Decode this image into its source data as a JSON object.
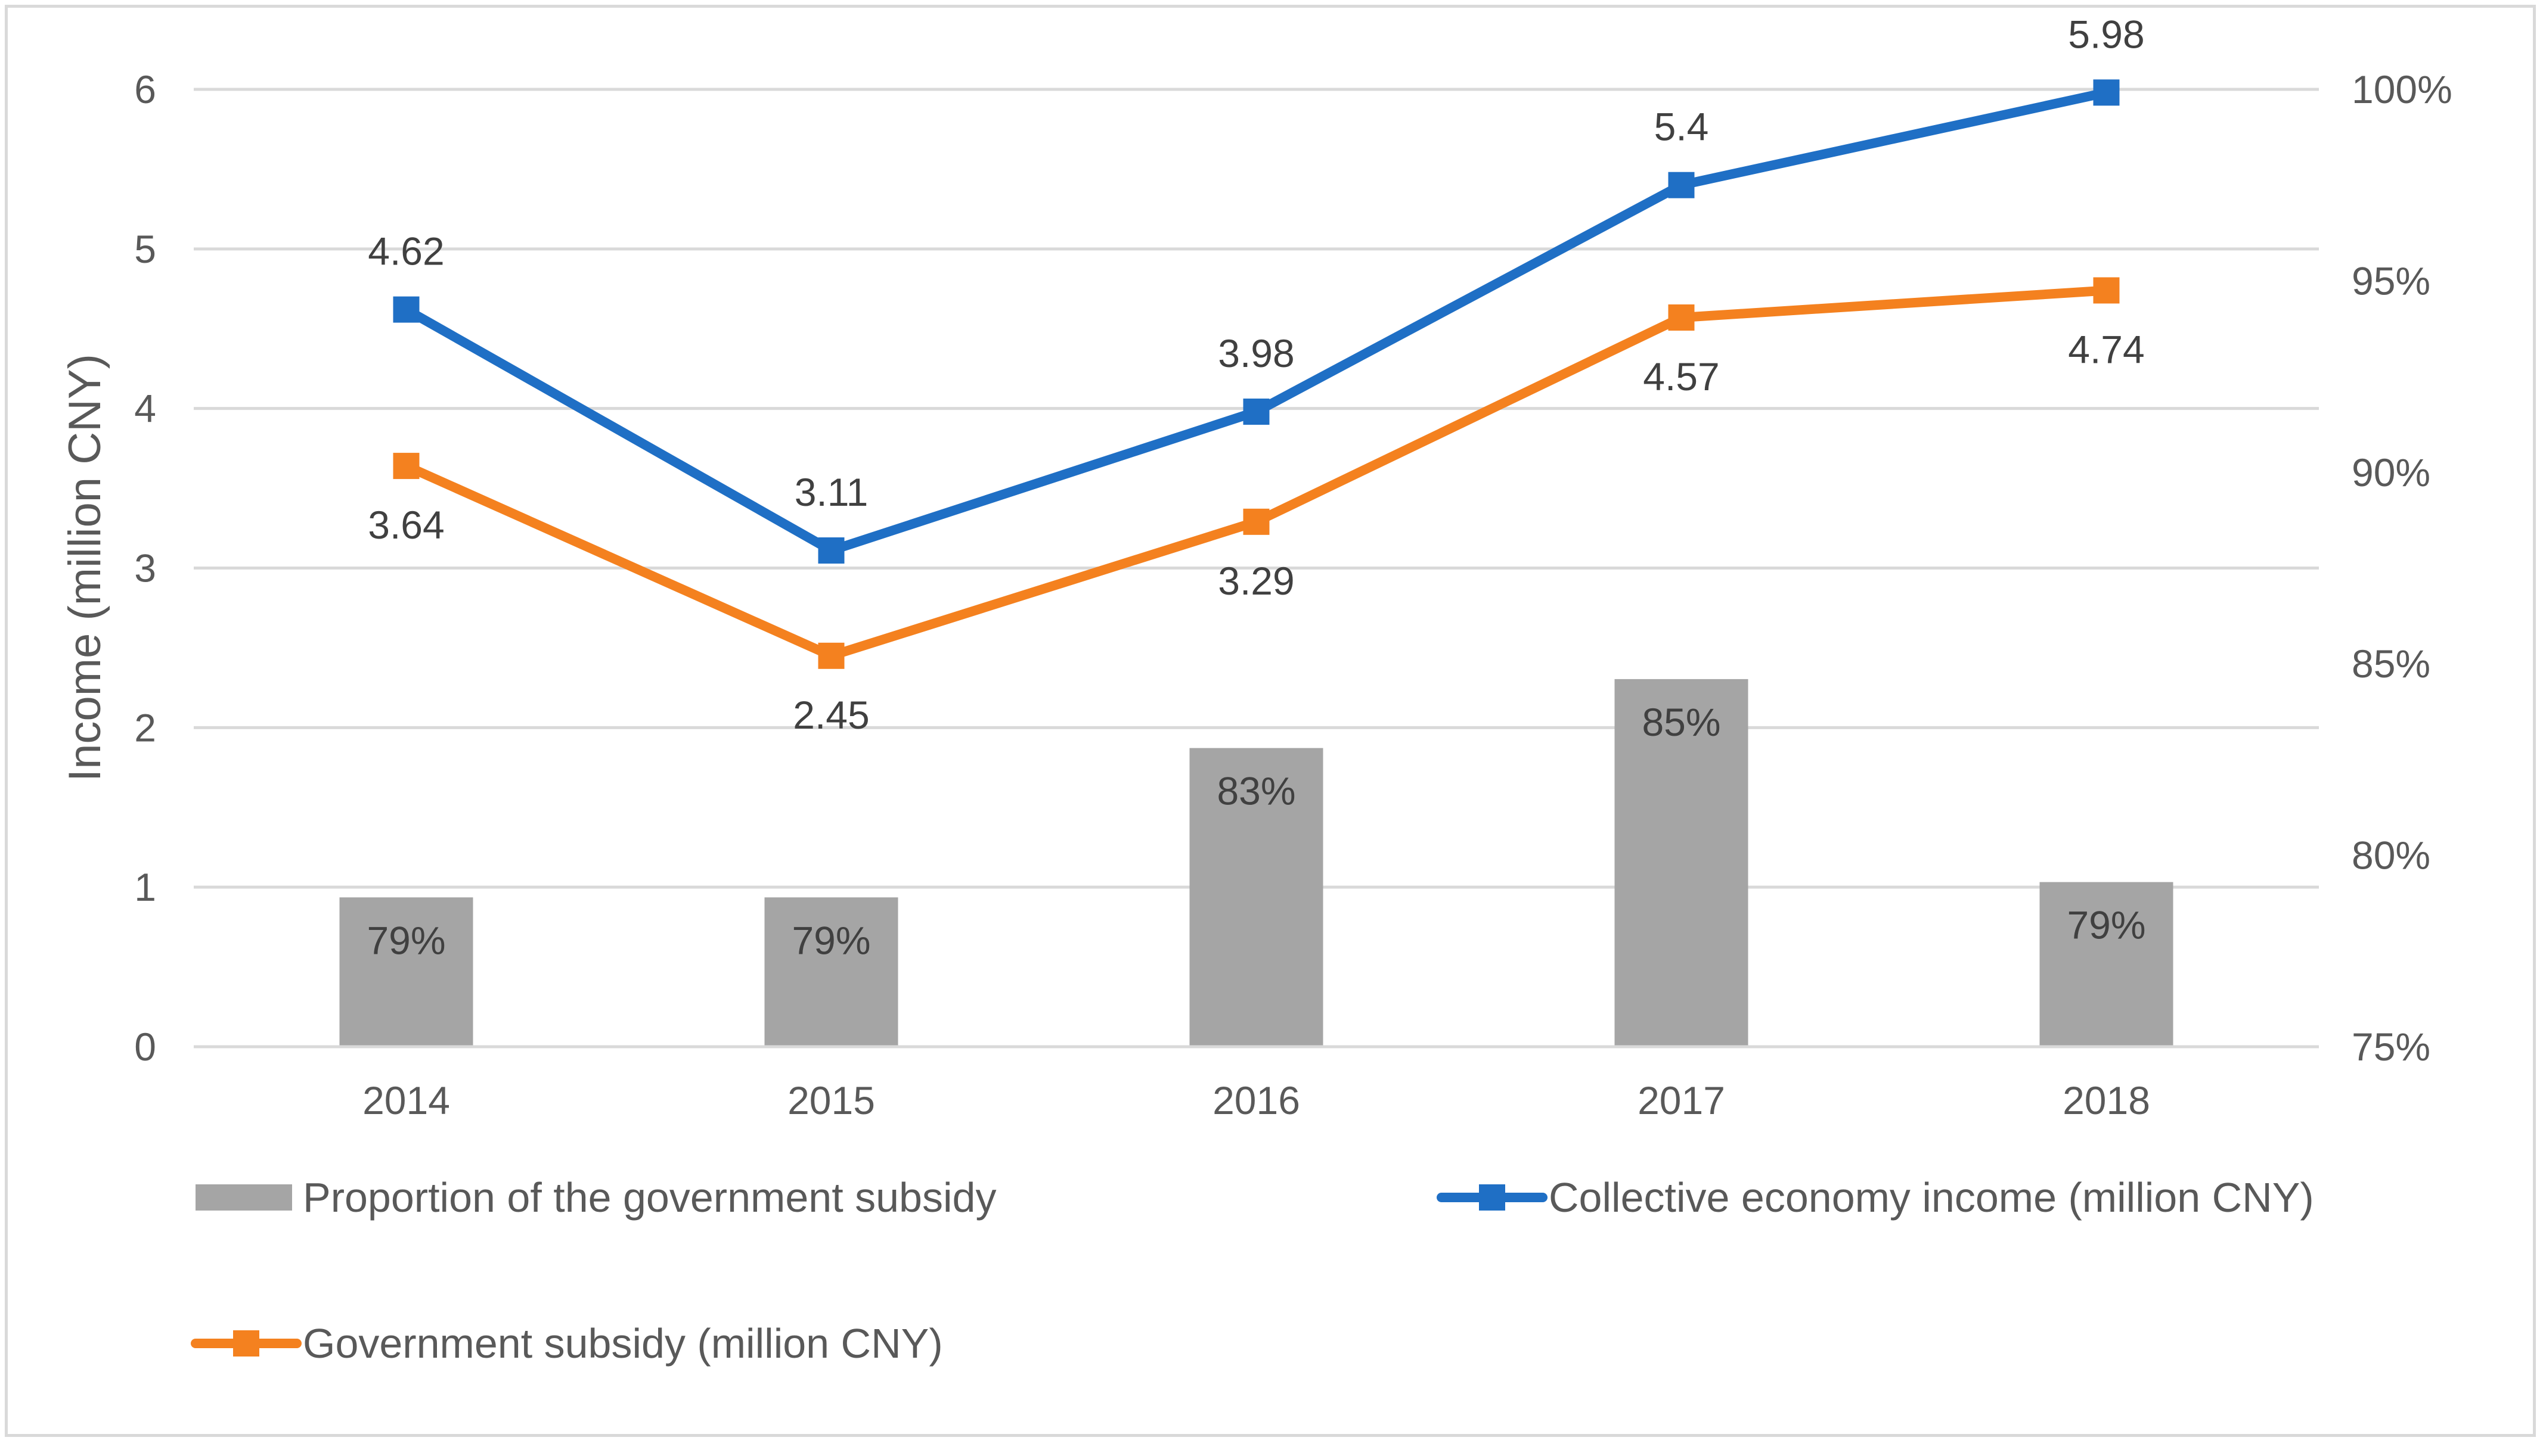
{
  "chart_data": {
    "type": "bar",
    "title": "",
    "categories": [
      "2014",
      "2015",
      "2016",
      "2017",
      "2018"
    ],
    "ylabel": "Income (million CNY)",
    "ylim": [
      0,
      6
    ],
    "yticks": [
      "0",
      "1",
      "2",
      "3",
      "4",
      "5",
      "6"
    ],
    "y2lim": [
      75,
      100
    ],
    "y2ticks": [
      "75%",
      "80%",
      "85%",
      "90%",
      "95%",
      "100%"
    ],
    "series": [
      {
        "name": "Proportion of the government subsidy",
        "kind": "bar",
        "axis": "right",
        "color": "#a5a5a5",
        "values": [
          78.9,
          78.9,
          82.8,
          84.6,
          79.3
        ],
        "labels": [
          "79%",
          "79%",
          "83%",
          "85%",
          "79%"
        ]
      },
      {
        "name": "Collective economy income (million CNY)",
        "kind": "line",
        "axis": "left",
        "color": "#1f6fc5",
        "values": [
          4.62,
          3.11,
          3.98,
          5.4,
          5.98
        ],
        "labels": [
          "4.62",
          "3.11",
          "3.98",
          "5.4",
          "5.98"
        ]
      },
      {
        "name": "Government subsidy (million CNY)",
        "kind": "line",
        "axis": "left",
        "color": "#f4811f",
        "values": [
          3.64,
          2.45,
          3.29,
          4.57,
          4.74
        ],
        "labels": [
          "3.64",
          "2.45",
          "3.29",
          "4.57",
          "4.74"
        ]
      }
    ],
    "grid": true,
    "legend": "bottom"
  }
}
